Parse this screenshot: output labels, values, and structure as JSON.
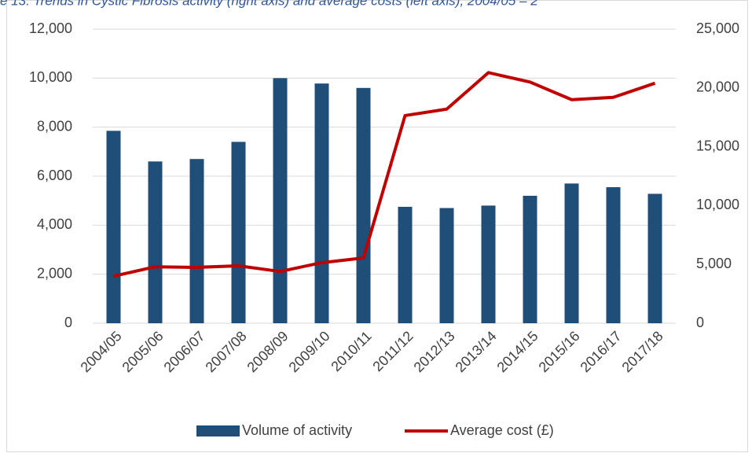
{
  "chart_data": {
    "type": "bar",
    "title": "e 13: Trends in Cystic Fibrosis activity (right axis) and average costs (left axis), 2004/05 – 2",
    "categories": [
      "2004/05",
      "2005/06",
      "2006/07",
      "2007/08",
      "2008/09",
      "2009/10",
      "2010/11",
      "2011/12",
      "2012/13",
      "2013/14",
      "2014/15",
      "2015/16",
      "2016/17",
      "2017/18"
    ],
    "series": [
      {
        "name": "Volume of activity",
        "type": "bar",
        "axis": "y",
        "color": "#1f4e79",
        "values": [
          7850,
          6600,
          6700,
          7400,
          10000,
          9780,
          9600,
          4750,
          4700,
          4800,
          5200,
          5700,
          5550,
          5280
        ]
      },
      {
        "name": "Average cost (£)",
        "type": "line",
        "axis": "y2",
        "color": "#c00000",
        "values": [
          4000,
          4800,
          4750,
          4880,
          4400,
          5150,
          5550,
          17650,
          18200,
          21300,
          20500,
          19000,
          19200,
          20400
        ]
      }
    ],
    "ylim": [
      0,
      12000
    ],
    "yticks": [
      0,
      {
        "value": 2000,
        "label": "2,000"
      },
      {
        "value": 4000,
        "label": "4,000"
      },
      {
        "value": 6000,
        "label": "6,000"
      },
      {
        "value": 8000,
        "label": "8,000"
      },
      {
        "value": 10000,
        "label": "10,000"
      },
      {
        "value": 12000,
        "label": "12,000"
      }
    ],
    "y2lim": [
      0,
      25000
    ],
    "y2ticks": [
      0,
      {
        "value": 5000,
        "label": "5,000"
      },
      {
        "value": 10000,
        "label": "10,000"
      },
      {
        "value": 15000,
        "label": "15,000"
      },
      {
        "value": 20000,
        "label": "20,000"
      },
      {
        "value": 25000,
        "label": "25,000"
      }
    ],
    "grid": true,
    "legend": "bottom"
  }
}
